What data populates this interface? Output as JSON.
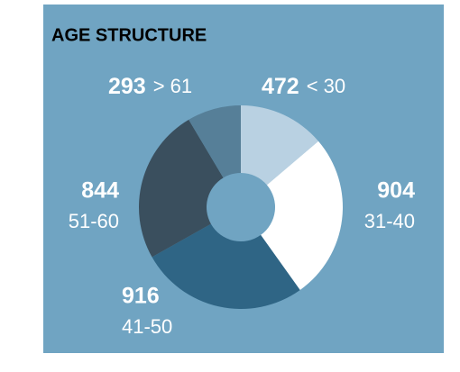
{
  "chart_data": {
    "type": "donut",
    "title": "AGE STRUCTURE",
    "categories": [
      "< 30",
      "31-40",
      "41-50",
      "51-60",
      "> 61"
    ],
    "values": [
      472,
      904,
      916,
      844,
      293
    ],
    "colors": [
      "#b9d1e2",
      "#ffffff",
      "#2f6585",
      "#3a4f5e",
      "#567f98"
    ]
  }
}
